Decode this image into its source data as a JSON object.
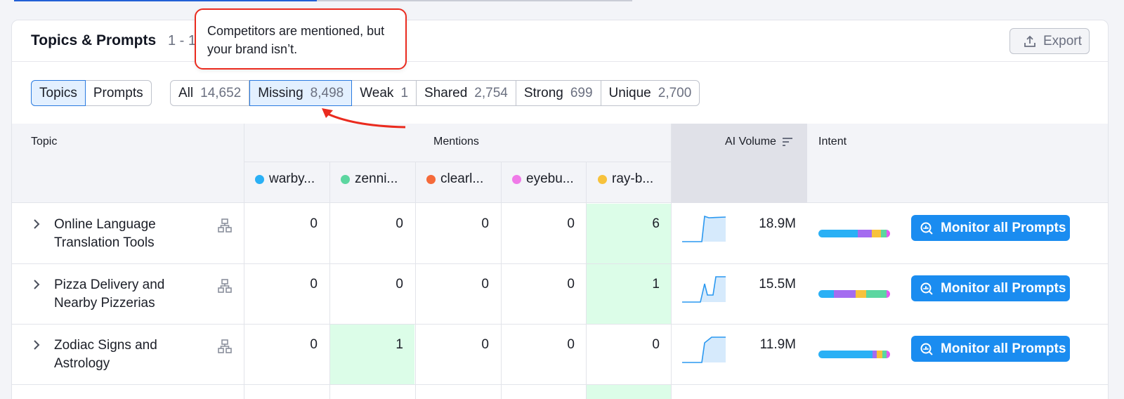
{
  "header": {
    "title": "Topics & Prompts",
    "count": "1 - 1",
    "export_label": "Export"
  },
  "view_toggle": [
    {
      "label": "Topics",
      "active": true
    },
    {
      "label": "Prompts",
      "active": false
    }
  ],
  "filters": [
    {
      "label": "All",
      "count": "14,652",
      "active": false
    },
    {
      "label": "Missing",
      "count": "8,498",
      "active": true
    },
    {
      "label": "Weak",
      "count": "1",
      "active": false
    },
    {
      "label": "Shared",
      "count": "2,754",
      "active": false
    },
    {
      "label": "Strong",
      "count": "699",
      "active": false
    },
    {
      "label": "Unique",
      "count": "2,700",
      "active": false
    }
  ],
  "tooltip": {
    "text": "Competitors are mentioned, but your brand isn’t."
  },
  "table": {
    "headers": {
      "topic": "Topic",
      "mentions": "Mentions",
      "ai_volume": "AI Volume",
      "intent": "Intent"
    },
    "competitors": [
      {
        "label": "warby...",
        "color": "#2ab0f5"
      },
      {
        "label": "zenni...",
        "color": "#5cd6a0"
      },
      {
        "label": "clearl...",
        "color": "#f56a3a"
      },
      {
        "label": "eyebu...",
        "color": "#f07ae8"
      },
      {
        "label": "ray-b...",
        "color": "#f7c23c"
      }
    ],
    "rows": [
      {
        "topic": "Online Language Translation Tools",
        "mentions": [
          "0",
          "0",
          "0",
          "0",
          "6"
        ],
        "highlight": [
          false,
          false,
          false,
          false,
          true
        ],
        "ai_volume": "18.9M",
        "intent": [
          0.55,
          0.2,
          0.12,
          0.08,
          0.05
        ],
        "action": "Monitor all Prompts"
      },
      {
        "topic": "Pizza Delivery and Nearby Pizzerias",
        "mentions": [
          "0",
          "0",
          "0",
          "0",
          "1"
        ],
        "highlight": [
          false,
          false,
          false,
          false,
          true
        ],
        "ai_volume": "15.5M",
        "intent": [
          0.22,
          0.3,
          0.15,
          0.28,
          0.05
        ],
        "action": "Monitor all Prompts"
      },
      {
        "topic": "Zodiac Signs and Astrology",
        "mentions": [
          "0",
          "1",
          "0",
          "0",
          "0"
        ],
        "highlight": [
          false,
          true,
          false,
          false,
          false
        ],
        "ai_volume": "11.9M",
        "intent": [
          0.75,
          0.06,
          0.08,
          0.06,
          0.05
        ],
        "action": "Monitor all Prompts"
      }
    ]
  },
  "intent_colors": [
    "#2ab0f5",
    "#a46cf0",
    "#f7c23c",
    "#5cd6a0",
    "#e25cf0"
  ],
  "icons": {
    "export": "upload-icon",
    "expand": "chevron-right-icon",
    "tree": "hierarchy-icon",
    "sort": "sort-icon",
    "monitor": "search-chart-icon"
  }
}
